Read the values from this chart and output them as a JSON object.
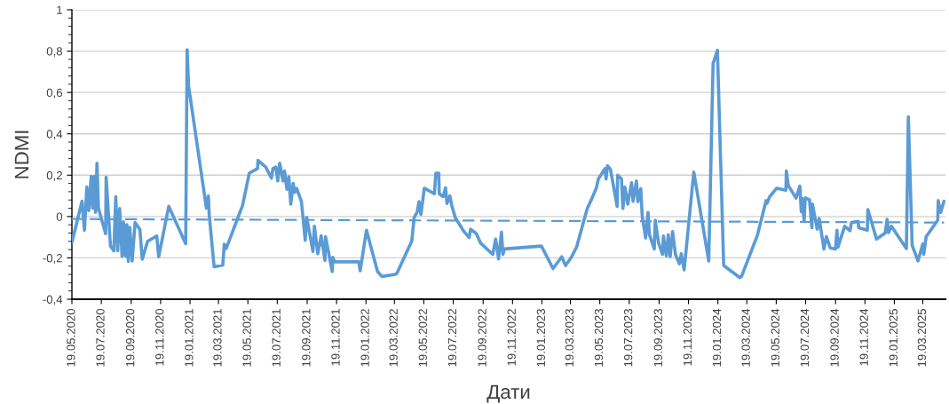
{
  "chart_data": {
    "type": "line",
    "xlabel": "Дати",
    "ylabel": "NDMI",
    "x": [
      "2020-05-19",
      "2020-06-09",
      "2020-06-14",
      "2020-06-19",
      "2020-06-23",
      "2020-06-28",
      "2020-07-01",
      "2020-07-04",
      "2020-07-07",
      "2020-07-10",
      "2020-07-13",
      "2020-07-28",
      "2020-07-29",
      "2020-08-07",
      "2020-08-14",
      "2020-08-18",
      "2020-08-22",
      "2020-08-26",
      "2020-08-31",
      "2020-09-03",
      "2020-09-07",
      "2020-09-10",
      "2020-09-13",
      "2020-09-16",
      "2020-09-21",
      "2020-09-27",
      "2020-10-07",
      "2020-10-12",
      "2020-10-23",
      "2020-11-11",
      "2020-11-15",
      "2020-12-06",
      "2021-01-10",
      "2021-01-13",
      "2021-01-16",
      "2021-02-22",
      "2021-02-26",
      "2021-02-28",
      "2021-03-10",
      "2021-03-28",
      "2021-03-31",
      "2021-04-04",
      "2021-05-08",
      "2021-05-22",
      "2021-06-08",
      "2021-06-09",
      "2021-06-25",
      "2021-07-07",
      "2021-07-10",
      "2021-07-16",
      "2021-07-20",
      "2021-07-24",
      "2021-07-31",
      "2021-08-03",
      "2021-08-08",
      "2021-08-12",
      "2021-08-16",
      "2021-08-21",
      "2021-08-24",
      "2021-08-28",
      "2021-09-07",
      "2021-09-15",
      "2021-09-18",
      "2021-10-01",
      "2021-10-04",
      "2021-10-11",
      "2021-10-18",
      "2021-10-26",
      "2021-10-27",
      "2021-11-10",
      "2021-11-11",
      "2021-11-15",
      "2022-01-04",
      "2022-01-07",
      "2022-01-20",
      "2022-02-12",
      "2022-02-21",
      "2022-03-20",
      "2022-03-24",
      "2022-04-24",
      "2022-04-29",
      "2022-05-05",
      "2022-05-09",
      "2022-05-13",
      "2022-05-20",
      "2022-06-10",
      "2022-06-13",
      "2022-06-19",
      "2022-06-20",
      "2022-06-28",
      "2022-07-03",
      "2022-07-06",
      "2022-07-12",
      "2022-07-16",
      "2022-07-23",
      "2022-08-09",
      "2022-08-21",
      "2022-08-24",
      "2022-09-05",
      "2022-09-14",
      "2022-10-09",
      "2022-10-15",
      "2022-10-21",
      "2022-10-27",
      "2022-10-30",
      "2022-11-02",
      "2023-01-18",
      "2023-02-11",
      "2023-03-01",
      "2023-03-09",
      "2023-03-21",
      "2023-04-01",
      "2023-04-23",
      "2023-05-03",
      "2023-05-12",
      "2023-05-16",
      "2023-05-30",
      "2023-06-01",
      "2023-06-04",
      "2023-06-10",
      "2023-06-24",
      "2023-06-25",
      "2023-07-03",
      "2023-07-06",
      "2023-07-10",
      "2023-07-16",
      "2023-07-24",
      "2023-07-27",
      "2023-08-03",
      "2023-08-06",
      "2023-08-12",
      "2023-08-15",
      "2023-08-22",
      "2023-08-27",
      "2023-08-30",
      "2023-09-09",
      "2023-09-11",
      "2023-09-18",
      "2023-09-26",
      "2023-09-28",
      "2023-10-04",
      "2023-10-08",
      "2023-10-12",
      "2023-10-17",
      "2023-10-23",
      "2023-10-31",
      "2023-11-04",
      "2023-11-10",
      "2023-11-30",
      "2023-12-31",
      "2024-01-09",
      "2024-01-18",
      "2024-01-31",
      "2024-03-04",
      "2024-03-08",
      "2024-04-10",
      "2024-04-28",
      "2024-04-30",
      "2024-05-05",
      "2024-05-20",
      "2024-06-08",
      "2024-06-09",
      "2024-06-13",
      "2024-06-29",
      "2024-07-07",
      "2024-07-10",
      "2024-07-11",
      "2024-07-16",
      "2024-07-18",
      "2024-07-27",
      "2024-08-01",
      "2024-08-02",
      "2024-08-12",
      "2024-08-16",
      "2024-08-26",
      "2024-08-31",
      "2024-09-08",
      "2024-09-19",
      "2024-09-22",
      "2024-09-24",
      "2024-10-08",
      "2024-10-19",
      "2024-10-22",
      "2024-11-05",
      "2024-11-06",
      "2024-11-24",
      "2024-11-25",
      "2024-12-13",
      "2024-12-31",
      "2025-01-04",
      "2025-01-07",
      "2025-01-13",
      "2025-02-13",
      "2025-02-17",
      "2025-02-25",
      "2025-03-09",
      "2025-03-19",
      "2025-03-21",
      "2025-03-26",
      "2025-04-19",
      "2025-04-20",
      "2025-04-25",
      "2025-05-02"
    ],
    "series": [
      {
        "color": "#5b9bd5",
        "line_style": "solid",
        "values": [
          -0.126,
          0.074,
          -0.066,
          0.143,
          0.029,
          0.194,
          0.04,
          0.194,
          0.02,
          0.258,
          0.04,
          -0.083,
          0.19,
          -0.143,
          -0.166,
          0.096,
          -0.166,
          0.039,
          -0.192,
          -0.026,
          -0.19,
          -0.04,
          -0.217,
          -0.052,
          -0.215,
          -0.029,
          -0.063,
          -0.206,
          -0.12,
          -0.094,
          -0.194,
          0.049,
          -0.132,
          0.807,
          0.632,
          0.04,
          0.1,
          0.003,
          -0.243,
          -0.235,
          -0.134,
          -0.155,
          0.054,
          0.21,
          0.232,
          0.272,
          0.239,
          0.186,
          0.232,
          0.239,
          0.172,
          0.258,
          0.172,
          0.22,
          0.132,
          0.192,
          0.06,
          0.16,
          0.117,
          0.136,
          0.074,
          -0.115,
          -0.004,
          -0.169,
          -0.047,
          -0.18,
          -0.093,
          -0.212,
          -0.097,
          -0.266,
          -0.197,
          -0.219,
          -0.219,
          -0.262,
          -0.066,
          -0.266,
          -0.29,
          -0.28,
          -0.275,
          -0.119,
          -0.004,
          0.02,
          0.072,
          0.01,
          0.137,
          0.11,
          0.21,
          0.21,
          0.11,
          0.096,
          0.139,
          0.063,
          0.1,
          0.053,
          -0.004,
          -0.069,
          -0.102,
          -0.061,
          -0.083,
          -0.129,
          -0.183,
          -0.109,
          -0.205,
          -0.076,
          -0.183,
          -0.157,
          -0.143,
          -0.252,
          -0.195,
          -0.237,
          -0.197,
          -0.147,
          0.039,
          0.089,
          0.139,
          0.182,
          0.232,
          0.182,
          0.246,
          0.229,
          0.049,
          0.2,
          0.182,
          0.039,
          0.143,
          0.06,
          0.163,
          0.074,
          0.172,
          0.072,
          0.135,
          0.003,
          -0.104,
          0.02,
          -0.088,
          -0.157,
          -0.018,
          -0.128,
          -0.183,
          -0.094,
          -0.19,
          -0.088,
          -0.194,
          -0.073,
          -0.183,
          -0.229,
          -0.18,
          -0.258,
          0.215,
          -0.215,
          0.74,
          0.804,
          -0.237,
          -0.295,
          -0.29,
          -0.09,
          0.077,
          0.064,
          0.094,
          0.137,
          0.127,
          0.22,
          0.15,
          0.089,
          0.147,
          0.023,
          0.089,
          -0.023,
          0.09,
          0.081,
          -0.054,
          0.06,
          -0.061,
          -0.009,
          -0.157,
          -0.097,
          -0.152,
          -0.157,
          -0.066,
          -0.148,
          -0.047,
          -0.069,
          -0.029,
          -0.023,
          -0.054,
          -0.066,
          0.034,
          -0.109,
          -0.08,
          -0.014,
          -0.078,
          -0.047,
          -0.155,
          0.482,
          -0.14,
          -0.215,
          -0.133,
          -0.183,
          -0.097,
          -0.018,
          0.077,
          0.02,
          0.074
        ]
      },
      {
        "type": "line",
        "color": "#5b9bd5",
        "line_style": "dashed",
        "x": [
          "2020-05-19",
          "2025-05-02"
        ],
        "values": [
          -0.012,
          -0.029
        ]
      }
    ],
    "xlim": [
      "2020-05-19",
      "2025-05-05"
    ],
    "xticks": [
      {
        "value": "2020-05-19",
        "label": "19.05.2020"
      },
      {
        "value": "2020-07-19",
        "label": "19.07.2020"
      },
      {
        "value": "2020-09-19",
        "label": "19.09.2020"
      },
      {
        "value": "2020-11-19",
        "label": "19.11.2020"
      },
      {
        "value": "2021-01-19",
        "label": "19.01.2021"
      },
      {
        "value": "2021-03-19",
        "label": "19.03.2021"
      },
      {
        "value": "2021-05-19",
        "label": "19.05.2021"
      },
      {
        "value": "2021-07-19",
        "label": "19.07.2021"
      },
      {
        "value": "2021-09-19",
        "label": "19.09.2021"
      },
      {
        "value": "2021-11-19",
        "label": "19.11.2021"
      },
      {
        "value": "2022-01-19",
        "label": "19.01.2022"
      },
      {
        "value": "2022-03-19",
        "label": "19.03.2022"
      },
      {
        "value": "2022-05-19",
        "label": "19.05.2022"
      },
      {
        "value": "2022-07-19",
        "label": "19.07.2022"
      },
      {
        "value": "2022-09-19",
        "label": "19.09.2022"
      },
      {
        "value": "2022-11-19",
        "label": "19.11.2022"
      },
      {
        "value": "2023-01-19",
        "label": "19.01.2023"
      },
      {
        "value": "2023-03-19",
        "label": "19.03.2023"
      },
      {
        "value": "2023-05-19",
        "label": "19.05.2023"
      },
      {
        "value": "2023-07-19",
        "label": "19.07.2023"
      },
      {
        "value": "2023-09-19",
        "label": "19.09.2023"
      },
      {
        "value": "2023-11-19",
        "label": "19.11.2023"
      },
      {
        "value": "2024-01-19",
        "label": "19.01.2024"
      },
      {
        "value": "2024-03-19",
        "label": "19.03.2024"
      },
      {
        "value": "2024-05-19",
        "label": "19.05.2024"
      },
      {
        "value": "2024-07-19",
        "label": "19.07.2024"
      },
      {
        "value": "2024-09-19",
        "label": "19.09.2024"
      },
      {
        "value": "2024-11-19",
        "label": "19.11.2024"
      },
      {
        "value": "2025-01-19",
        "label": "19.01.2025"
      },
      {
        "value": "2025-03-19",
        "label": "19.03.2025"
      }
    ],
    "ylim": [
      -0.4,
      1
    ],
    "yticks": [
      {
        "value": -0.4,
        "label": "-0,4"
      },
      {
        "value": -0.2,
        "label": "-0,2"
      },
      0,
      {
        "value": 0.2,
        "label": "0,2"
      },
      {
        "value": 0.4,
        "label": "0,4"
      },
      {
        "value": 0.6,
        "label": "0,6"
      },
      {
        "value": 0.8,
        "label": "0,8"
      },
      1
    ],
    "grid": "y",
    "legend": false,
    "marker": "none"
  }
}
